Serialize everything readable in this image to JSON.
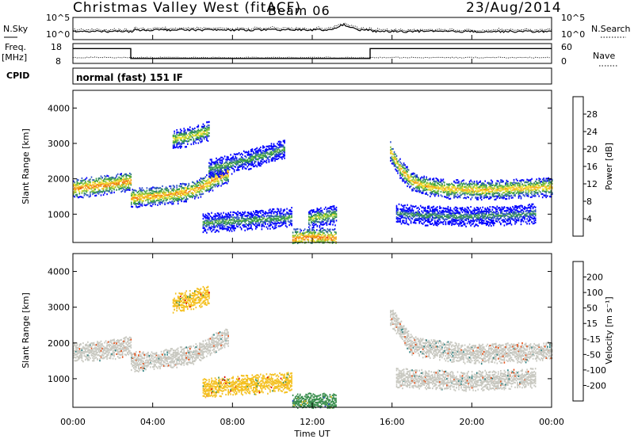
{
  "title": "Christmas Valley West (fitACF)",
  "beam": "Beam 06",
  "date": "23/Aug/2014",
  "noise_panel": {
    "left_label": "N.Sky",
    "right_label": "N.Search",
    "left_ticks": [
      "10^5",
      "10^0"
    ],
    "right_ticks": [
      "10^5",
      "10^0"
    ]
  },
  "freq_panel": {
    "left_label_1": "Freq.",
    "left_label_2": "[MHz]",
    "right_label": "Nave",
    "left_ticks": [
      "18",
      "8"
    ],
    "right_ticks": [
      "60",
      "0"
    ],
    "freq_steps": [
      {
        "start": 0.0,
        "end": 2.9,
        "value": 15.5
      },
      {
        "start": 2.9,
        "end": 14.9,
        "value": 10.5
      },
      {
        "start": 14.9,
        "end": 24.0,
        "value": 15.5
      }
    ]
  },
  "cpid": {
    "label": "CPID",
    "program": "normal (fast) 151 IF"
  },
  "power_panel": {
    "ylabel": "Slant Range [km]",
    "yticks": [
      "4000",
      "3000",
      "2000",
      "1000"
    ],
    "colorbar_label": "Power [dB]",
    "colorbar_ticks": [
      "28",
      "24",
      "20",
      "16",
      "12",
      "8",
      "4"
    ],
    "colors": [
      "#0000ff",
      "#3355cc",
      "#2f7f6f",
      "#3aa040",
      "#8bc53f",
      "#f2e030",
      "#f4b020",
      "#f07a10",
      "#e63a10",
      "#dd0000"
    ]
  },
  "velocity_panel": {
    "ylabel": "Slant Range [km]",
    "yticks": [
      "4000",
      "3000",
      "2000",
      "1000"
    ],
    "colorbar_label": "Velocity [m s⁻¹]",
    "colorbar_ticks": [
      "200",
      "100",
      "50",
      "15",
      "-15",
      "-50",
      "-100",
      "-200"
    ],
    "colors": [
      "#1f3fbf",
      "#2a7f7f",
      "#3b8f4f",
      "#7fcf3f",
      "#c8c8c0",
      "#f4c020",
      "#f08a10",
      "#e64a10",
      "#dd0000"
    ]
  },
  "xaxis": {
    "label": "Time UT",
    "ticks": [
      "00:00",
      "04:00",
      "08:00",
      "12:00",
      "16:00",
      "20:00",
      "00:00"
    ]
  },
  "chart_data": {
    "type": "heatmap",
    "x_unit": "hours UT",
    "xlim": [
      0,
      24
    ],
    "ylim": [
      200,
      4500
    ],
    "power_bands": [
      {
        "x": [
          0.0,
          0.6,
          1.2,
          1.8,
          2.4,
          2.9
        ],
        "y": [
          1750,
          1790,
          1830,
          1870,
          1920,
          1960
        ],
        "value": 26
      },
      {
        "x": [
          2.9,
          3.6,
          4.4,
          5.2,
          6.0,
          6.6,
          7.2,
          7.8
        ],
        "y": [
          1480,
          1520,
          1560,
          1600,
          1700,
          1850,
          2050,
          2200
        ],
        "value": 25
      },
      {
        "x": [
          5.0,
          5.6,
          6.2,
          6.8
        ],
        "y": [
          3150,
          3200,
          3280,
          3380
        ],
        "value": 20
      },
      {
        "x": [
          6.8,
          7.6,
          8.4,
          9.2,
          10.0,
          10.6
        ],
        "y": [
          2300,
          2400,
          2520,
          2640,
          2770,
          2880
        ],
        "value": 14
      },
      {
        "x": [
          6.5,
          7.5,
          8.5,
          9.5,
          10.5,
          11.0
        ],
        "y": [
          780,
          820,
          850,
          880,
          920,
          950
        ],
        "value": 14
      },
      {
        "x": [
          11.8,
          12.3,
          12.8,
          13.2
        ],
        "y": [
          900,
          940,
          980,
          1000
        ],
        "value": 18
      },
      {
        "x": [
          11.0,
          11.6,
          12.2,
          12.8,
          13.2
        ],
        "y": [
          340,
          360,
          370,
          360,
          340
        ],
        "value": 26
      },
      {
        "x": [
          15.9,
          16.4,
          17.0,
          17.8,
          18.6,
          19.6,
          20.6,
          21.6,
          22.6,
          24.0
        ],
        "y": [
          2800,
          2300,
          1950,
          1800,
          1750,
          1720,
          1720,
          1730,
          1760,
          1800
        ],
        "value": 23
      },
      {
        "x": [
          16.2,
          17.2,
          18.4,
          19.6,
          20.8,
          22.0,
          23.2
        ],
        "y": [
          1050,
          1000,
          980,
          960,
          980,
          1000,
          1050
        ],
        "value": 12
      }
    ],
    "velocity_bands": [
      {
        "x": [
          0.0,
          1.0,
          2.0,
          2.9
        ],
        "y": [
          1750,
          1800,
          1850,
          1950
        ],
        "value": 0
      },
      {
        "x": [
          2.9,
          4.4,
          6.0,
          7.2,
          7.8
        ],
        "y": [
          1500,
          1560,
          1700,
          2050,
          2200
        ],
        "value": 0
      },
      {
        "x": [
          5.0,
          6.0,
          6.8
        ],
        "y": [
          3150,
          3250,
          3380
        ],
        "value": -30
      },
      {
        "x": [
          6.5,
          8.5,
          10.5,
          11.0
        ],
        "y": [
          780,
          850,
          920,
          950
        ],
        "value": -40
      },
      {
        "x": [
          11.0,
          12.2,
          13.2
        ],
        "y": [
          340,
          370,
          340
        ],
        "value": 60
      },
      {
        "x": [
          15.9,
          17.0,
          19.6,
          22.6,
          24.0
        ],
        "y": [
          2800,
          1950,
          1720,
          1760,
          1800
        ],
        "value": 0
      },
      {
        "x": [
          16.2,
          19.6,
          23.2
        ],
        "y": [
          1050,
          960,
          1050
        ],
        "value": 0
      }
    ]
  }
}
